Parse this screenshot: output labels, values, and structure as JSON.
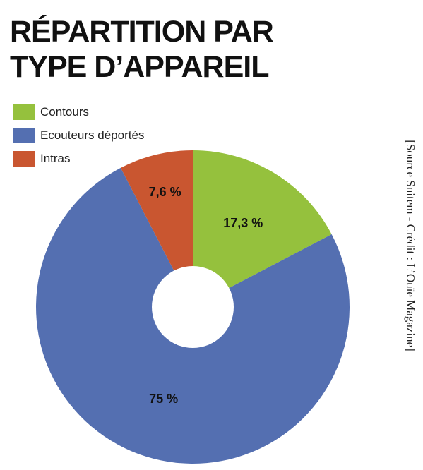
{
  "title_line1": "RÉPARTITION PAR",
  "title_line2": "TYPE D’APPAREIL",
  "source": "[Source Snitem - Crédit : L’Ouïe Magazine]",
  "chart_data": {
    "type": "pie",
    "title": "RÉPARTITION PAR TYPE D’APPAREIL",
    "donut": true,
    "legend_position": "top-left",
    "categories": [
      "Contours",
      "Ecouteurs déportés",
      "Intras"
    ],
    "values": [
      17.3,
      75,
      7.6
    ],
    "labels": [
      "17,3 %",
      "75 %",
      "7,6 %"
    ],
    "colors": [
      "#95c13d",
      "#546fb1",
      "#c95630"
    ]
  }
}
